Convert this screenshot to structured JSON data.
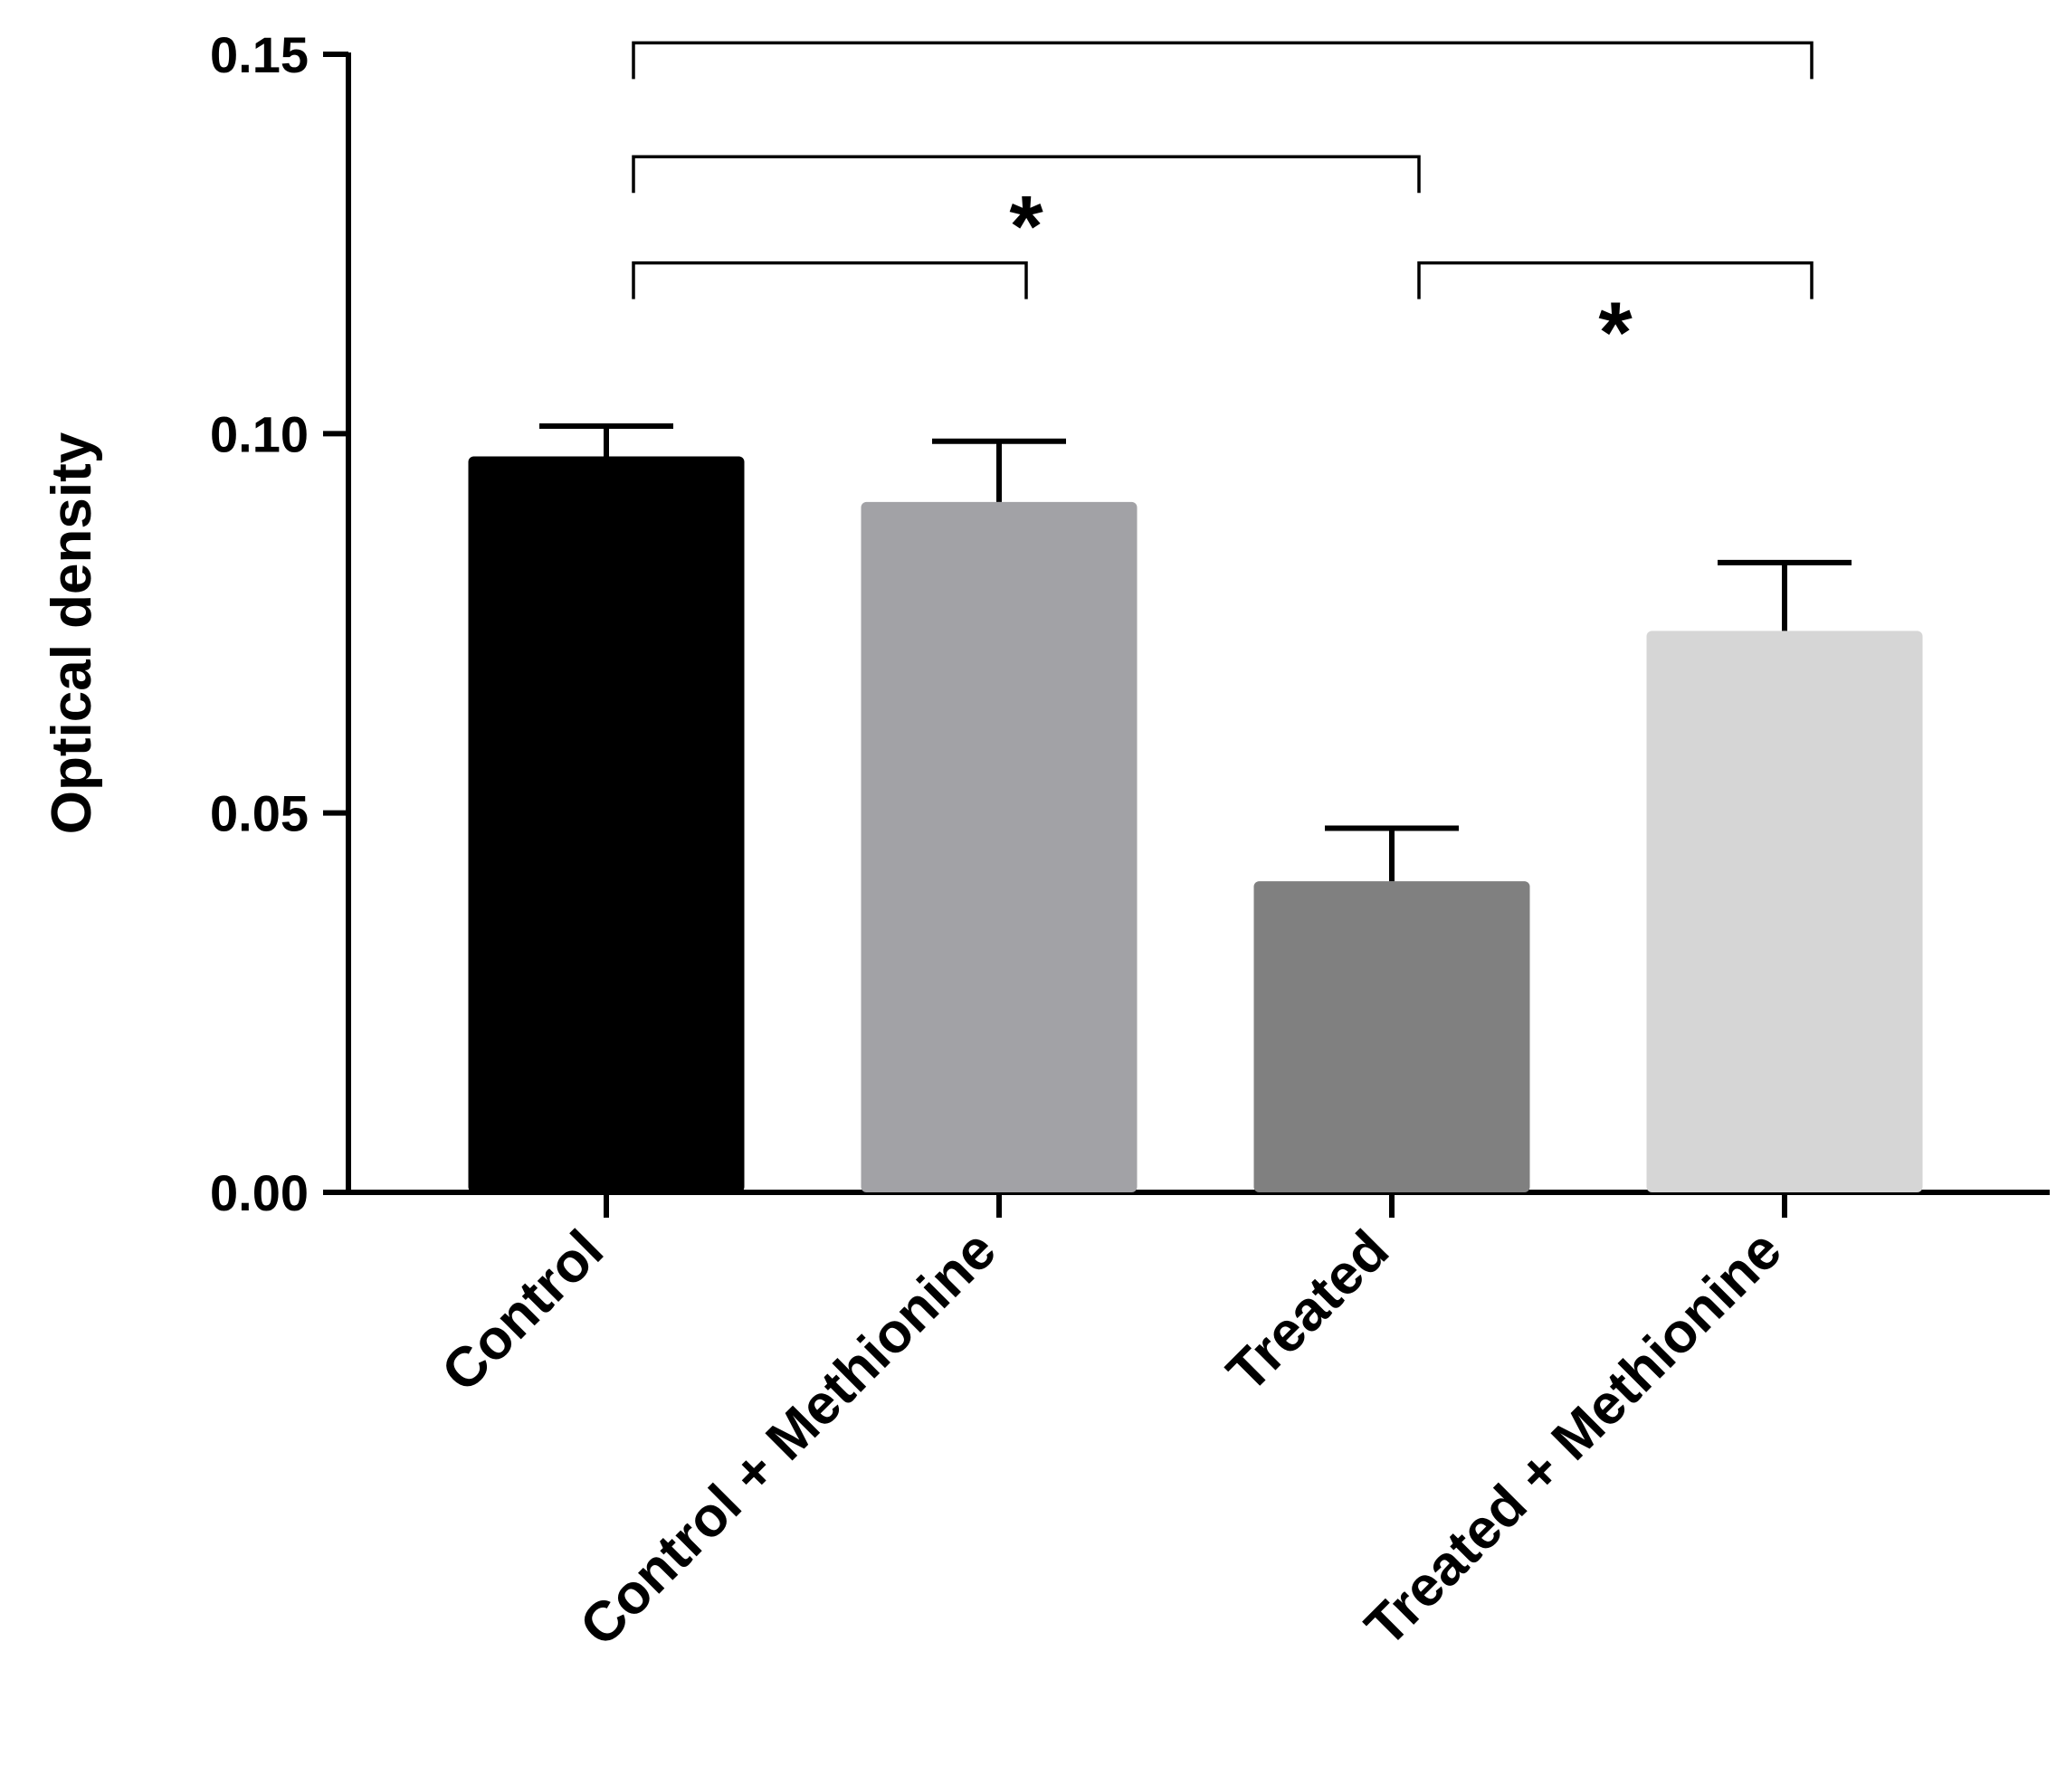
{
  "chart_data": {
    "type": "bar",
    "title": "",
    "xlabel": "",
    "ylabel": "Optical density",
    "ylim": [
      0,
      0.15
    ],
    "yticks": [
      "0.00",
      "0.05",
      "0.10",
      "0.15"
    ],
    "categories": [
      "Control",
      "Control + Methionine",
      "Treated",
      "Treated + Methionine"
    ],
    "values": [
      0.097,
      0.091,
      0.041,
      0.074
    ],
    "errors": [
      0.004,
      0.008,
      0.007,
      0.009
    ],
    "colors": [
      "#000000",
      "#a2a2a6",
      "#808080",
      "#d6d6d6"
    ],
    "grid": false,
    "legend": "none",
    "significance": [
      {
        "from": 0,
        "to": 3,
        "level": 0.1515,
        "label": ""
      },
      {
        "from": 0,
        "to": 2,
        "level": 0.1365,
        "label": "*"
      },
      {
        "from": 0,
        "to": 1,
        "level": 0.1225,
        "label": ""
      },
      {
        "from": 2,
        "to": 3,
        "level": 0.1225,
        "label": "*"
      }
    ]
  }
}
